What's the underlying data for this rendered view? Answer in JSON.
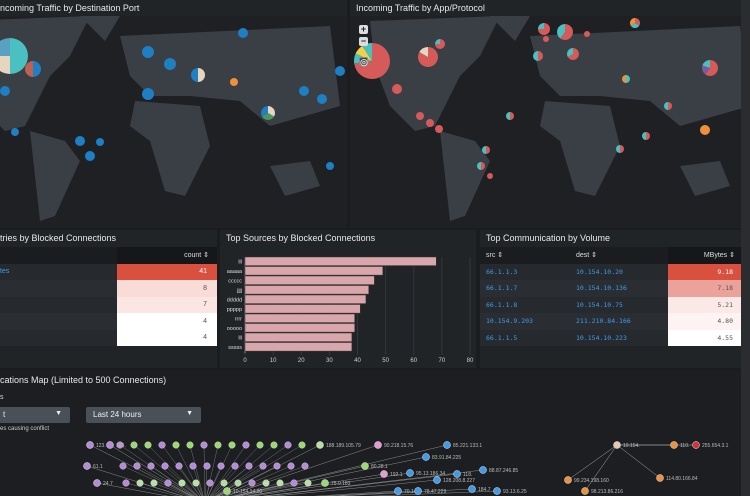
{
  "maps": {
    "left_title": "ncoming Traffic by Destination Port",
    "right_title": "Incoming Traffic by App/Protocol",
    "zoom_in": "+",
    "zoom_out": "−",
    "reset_icon": "target-icon",
    "colors": {
      "land": "#3a3e45",
      "water": "#1e2023",
      "blue": "#1f7fc4",
      "red": "#d65a5a",
      "teal": "#4bc0c0",
      "yellow": "#f0d24a",
      "orange": "#f0903a",
      "purple": "#7a5aa0",
      "beige": "#e8d5c0"
    }
  },
  "countries": {
    "title": "tries by Blocked Connections",
    "count_header": "count ⇕",
    "rows": [
      {
        "name": "tes",
        "count": "41",
        "color": "#d9503f"
      },
      {
        "name": "",
        "count": "8",
        "color": "#f9dcd8"
      },
      {
        "name": "",
        "count": "7",
        "color": "#fbe6e3"
      },
      {
        "name": "",
        "count": "4",
        "color": "#ffffff"
      },
      {
        "name": "",
        "count": "4",
        "color": "#ffffff"
      }
    ]
  },
  "chart_data": {
    "type": "bar",
    "orientation": "horizontal",
    "title": "Top Sources by Blocked Connections",
    "categories": [
      "lll",
      "aaaaa",
      "ccccc",
      "jjjj",
      "ddddd",
      "ppppp",
      "rrrr",
      "ooooo",
      "lll",
      "sssss"
    ],
    "values": [
      68,
      49,
      46,
      44,
      43,
      41,
      39,
      39,
      38,
      38
    ],
    "xlim": [
      0,
      80
    ],
    "xticks": [
      0,
      10,
      20,
      30,
      40,
      50,
      60,
      70,
      80
    ],
    "bar_color": "#d9a6ab",
    "grid": true
  },
  "volume": {
    "title": "Top Communication by Volume",
    "headers": [
      "src ⇕",
      "dest ⇕",
      "MBytes ⇕"
    ],
    "rows": [
      {
        "src": "66.1.1.3",
        "dest": "10.154.10.20",
        "mb": "9.18",
        "color": "#d9503f"
      },
      {
        "src": "66.1.1.7",
        "dest": "10.154.10.136",
        "mb": "7.18",
        "color": "#eba29b"
      },
      {
        "src": "66.1.1.8",
        "dest": "10.154.10.75",
        "mb": "5.21",
        "color": "#fbe9e7"
      },
      {
        "src": "10.154.9.203",
        "dest": "211.210.84.166",
        "mb": "4.80",
        "color": "#fdf3f2"
      },
      {
        "src": "66.1.1.5",
        "dest": "10.154.10.223",
        "mb": "4.55",
        "color": "#ffffff"
      }
    ]
  },
  "network": {
    "title": "cations Map (Limited to 500 Connections)",
    "field_label": "s",
    "select1": "t",
    "select2": "Last 24 hours",
    "note": "es causing conflict",
    "nodes": [
      {
        "label": "123.",
        "color": "#b58ad8"
      },
      {
        "label": "183.",
        "color": "#b58ad8"
      },
      {
        "label": "188.189.105.79",
        "color": "#b8e0a0"
      },
      {
        "label": "90.218.15.76",
        "color": "#e89ad0"
      },
      {
        "label": "83.91.84.225",
        "color": "#3d9be9"
      },
      {
        "label": "85.221.133.1",
        "color": "#3d9be9"
      },
      {
        "label": "110.",
        "color": "#f0903a"
      },
      {
        "label": "255.654.3.1",
        "color": "#d9303f"
      },
      {
        "label": "61.1",
        "color": "#b58ad8"
      },
      {
        "label": "80.28.1",
        "color": "#9ad870"
      },
      {
        "label": "192.1",
        "color": "#e89ad0"
      },
      {
        "label": "95.13.186.34",
        "color": "#3d9be9"
      },
      {
        "label": "118.",
        "color": "#3d9be9"
      },
      {
        "label": "88.87.246.85",
        "color": "#3d9be9"
      },
      {
        "label": "128.208.8.227",
        "color": "#3d9be9"
      },
      {
        "label": "99.234.198.160",
        "color": "#f0903a"
      },
      {
        "label": "114.80.166.84",
        "color": "#f0903a"
      },
      {
        "label": "24.7",
        "color": "#b58ad8"
      },
      {
        "label": "75.9.183",
        "color": "#9ad870"
      },
      {
        "label": "10.154.14.20",
        "color": "#9ad870"
      },
      {
        "label": "70.1",
        "color": "#3d9be9"
      },
      {
        "label": "78.47.229",
        "color": "#3d9be9"
      },
      {
        "label": "184.7",
        "color": "#3d9be9"
      },
      {
        "label": "93.13.6.25",
        "color": "#3d9be9"
      },
      {
        "label": "98.213.86.216",
        "color": "#f0903a"
      },
      {
        "label": "10.154.",
        "color": "#e8c8b0"
      }
    ]
  }
}
